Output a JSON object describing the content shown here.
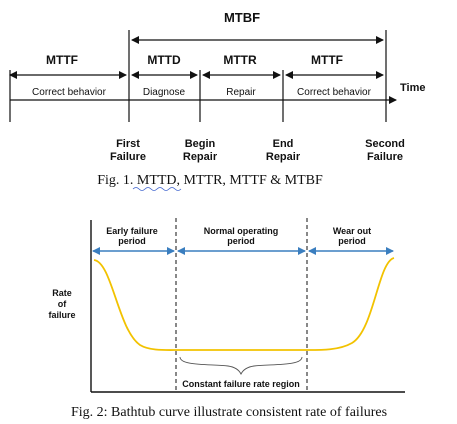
{
  "figure1": {
    "mtbf_label": "MTBF",
    "mttf_left_label": "MTTF",
    "mttd_label": "MTTD",
    "mttr_label": "MTTR",
    "mttf_right_label": "MTTF",
    "time_label": "Time",
    "segments": [
      "Correct behavior",
      "Diagnose",
      "Repair",
      "Correct behavior"
    ],
    "events": [
      {
        "line1": "First",
        "line2": "Failure"
      },
      {
        "line1": "Begin",
        "line2": "Repair"
      },
      {
        "line1": "End",
        "line2": "Repair"
      },
      {
        "line1": "Second",
        "line2": "Failure"
      }
    ],
    "caption": "Fig. 1. MTTD, MTTR, MTTF & MTBF"
  },
  "figure2": {
    "regions": [
      {
        "line1": "Early failure",
        "line2": "period"
      },
      {
        "line1": "Normal operating",
        "line2": "period"
      },
      {
        "line1": "Wear out",
        "line2": "period"
      }
    ],
    "ylabel": {
      "line1": "Rate",
      "line2": "of",
      "line3": "failure"
    },
    "constant_region_label": "Constant failure rate region",
    "caption": "Fig. 2: Bathtub curve illustrate consistent rate of failures",
    "curve_color": "#f2c200",
    "arrow_color": "#3a7ebf"
  }
}
